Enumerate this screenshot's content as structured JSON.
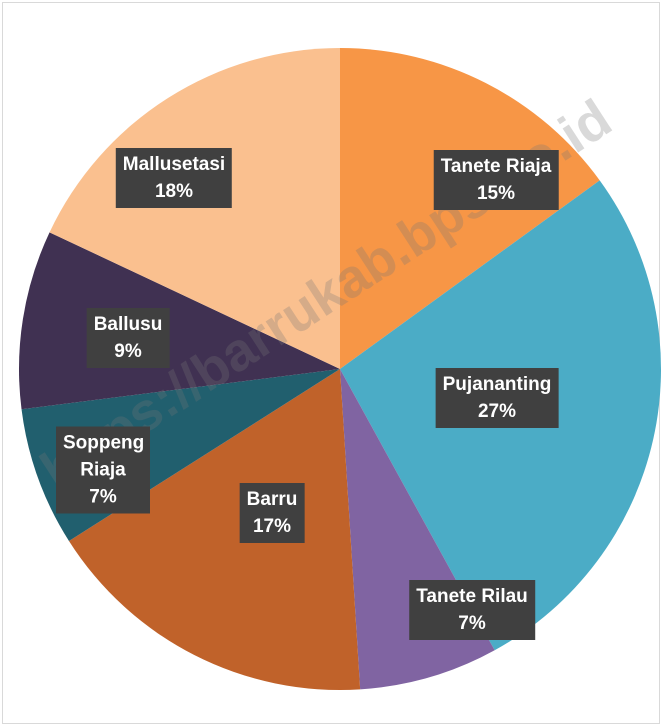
{
  "chart_data": {
    "type": "pie",
    "categories": [
      "Tanete Riaja",
      "Pujananting",
      "Tanete Rilau",
      "Barru",
      "Soppeng Riaja",
      "Ballusu",
      "Mallusetasi"
    ],
    "values": [
      15,
      27,
      7,
      17,
      7,
      9,
      18
    ],
    "value_labels": [
      "15%",
      "27%",
      "7%",
      "17%",
      "7%",
      "9%",
      "18%"
    ],
    "colors": [
      "#f79646",
      "#4bacc6",
      "#8064a2",
      "#c0622a",
      "#215f6e",
      "#403152",
      "#fac08f"
    ],
    "watermark": "https://barrukab.bps.go.id"
  }
}
